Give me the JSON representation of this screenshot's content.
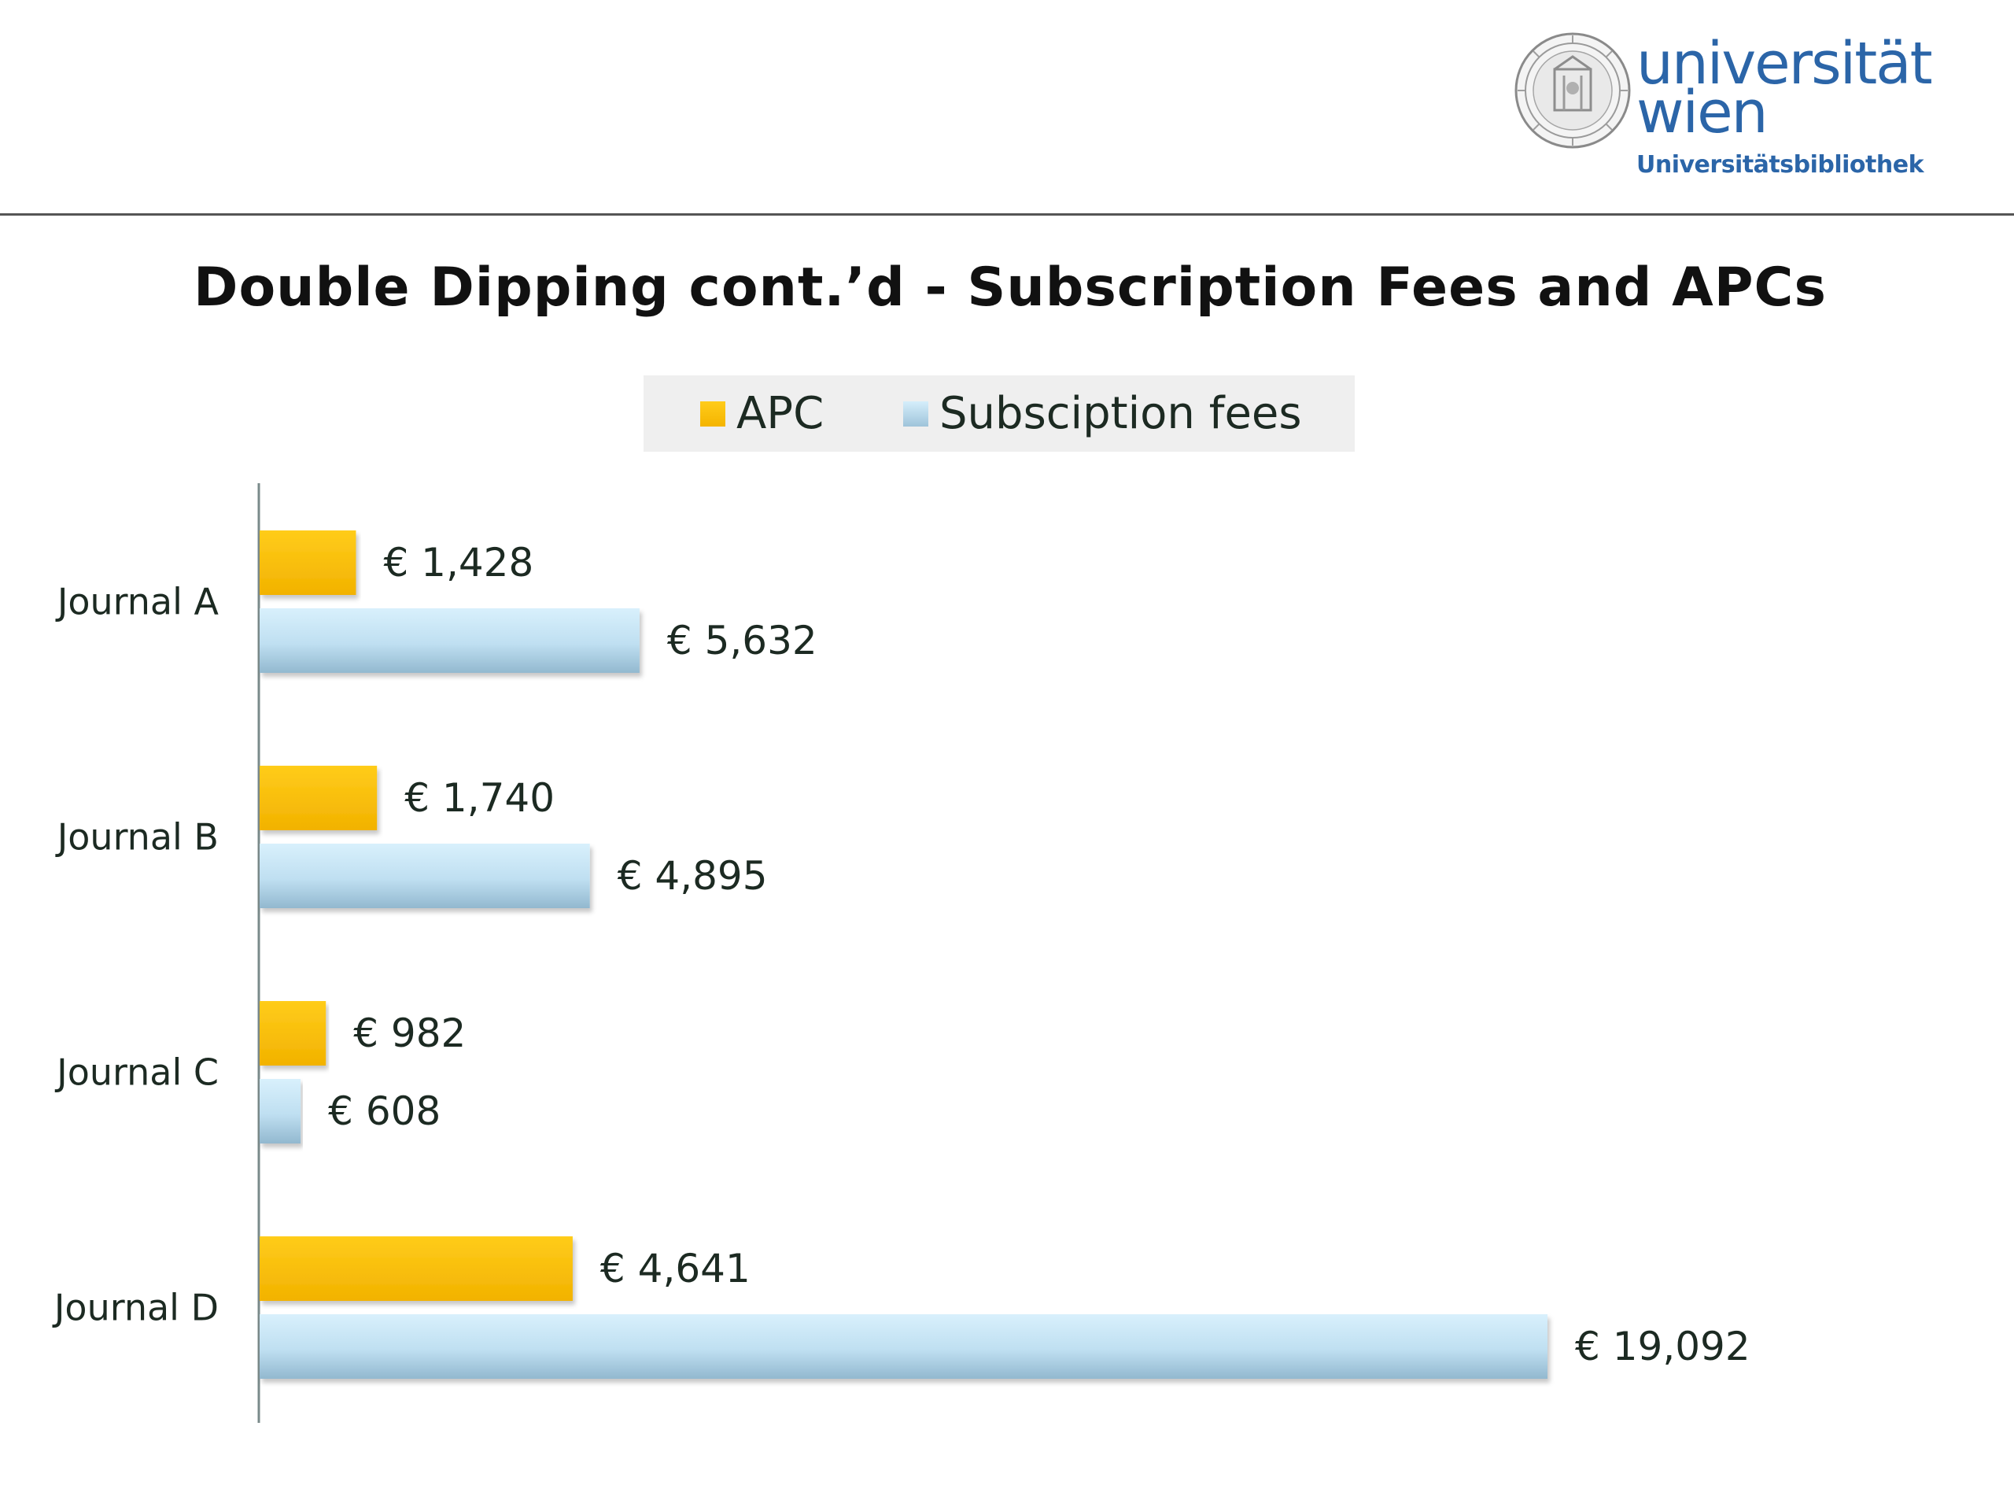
{
  "logo": {
    "name_line1": "universität",
    "name_line2": "wien",
    "subtitle": "Universitätsbibliothek",
    "icon": "university-seal-icon",
    "color": "#2b65a8"
  },
  "slide": {
    "title": "Double Dipping cont.’d - Subscription Fees and APCs"
  },
  "chart_data": {
    "type": "bar",
    "orientation": "horizontal",
    "categories": [
      "Journal A",
      "Journal B",
      "Journal C",
      "Journal D"
    ],
    "series": [
      {
        "name": "APC",
        "color": "#f9bf00",
        "values": [
          1428,
          1740,
          982,
          4641
        ],
        "labels": [
          "€ 1,428",
          "€ 1,740",
          "€ 982",
          "€ 4,641"
        ]
      },
      {
        "name": "Subsciption fees",
        "color": "#b6dbf0",
        "values": [
          5632,
          4895,
          608,
          19092
        ],
        "labels": [
          "€ 5,632",
          "€ 4,895",
          "€ 608",
          "€ 19,092"
        ]
      }
    ],
    "title": "Double Dipping cont.’d - Subscription Fees and APCs",
    "xlim": [
      0,
      19092
    ],
    "grid": false,
    "legend": "top",
    "data_labels": true
  }
}
